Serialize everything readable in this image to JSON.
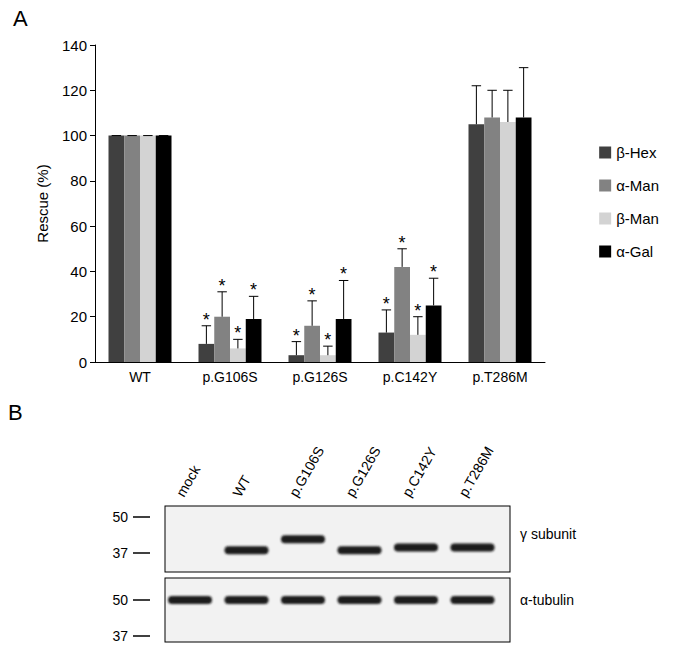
{
  "chart_data": {
    "type": "bar",
    "panel_label": "A",
    "y_label": "Rescue (%)",
    "categories": [
      "WT",
      "p.G106S",
      "p.G126S",
      "p.C142Y",
      "p.T286M"
    ],
    "series": [
      {
        "name": "β-Hex",
        "color": "#404040",
        "values": [
          100,
          8,
          3,
          13,
          105
        ],
        "errors": [
          0,
          8,
          6,
          10,
          17
        ],
        "marks": [
          null,
          "*",
          "*",
          "*",
          null
        ]
      },
      {
        "name": "α-Man",
        "color": "#828282",
        "values": [
          100,
          20,
          16,
          42,
          108
        ],
        "errors": [
          0,
          11,
          11,
          8,
          12
        ],
        "marks": [
          null,
          "*",
          "*",
          "*",
          null
        ]
      },
      {
        "name": "β-Man",
        "color": "#d3d3d3",
        "values": [
          100,
          6,
          3,
          12,
          106
        ],
        "errors": [
          0,
          4,
          4,
          8,
          14
        ],
        "marks": [
          null,
          "*",
          "*",
          "*",
          null
        ]
      },
      {
        "name": "α-Gal",
        "color": "#000000",
        "values": [
          100,
          19,
          19,
          25,
          108
        ],
        "errors": [
          0,
          10,
          17,
          12,
          22
        ],
        "marks": [
          null,
          "*",
          "*",
          "*",
          null
        ]
      }
    ],
    "ylim": [
      0,
      140
    ],
    "yticks": [
      0,
      20,
      40,
      60,
      80,
      100,
      120,
      140
    ],
    "grid": false,
    "legend": "right"
  },
  "panel_b": {
    "label": "B",
    "lanes": [
      "mock",
      "WT",
      "p.G106S",
      "p.G126S",
      "p.C142Y",
      "p.T286M"
    ],
    "blots": [
      {
        "name": "γ subunit",
        "markers": [
          50,
          37
        ],
        "band_kda": [
          null,
          38,
          42,
          38,
          39,
          39
        ]
      },
      {
        "name": "α-tubulin",
        "markers": [
          50,
          37
        ],
        "band_kda": [
          50,
          50,
          50,
          50,
          50,
          50
        ]
      }
    ]
  }
}
